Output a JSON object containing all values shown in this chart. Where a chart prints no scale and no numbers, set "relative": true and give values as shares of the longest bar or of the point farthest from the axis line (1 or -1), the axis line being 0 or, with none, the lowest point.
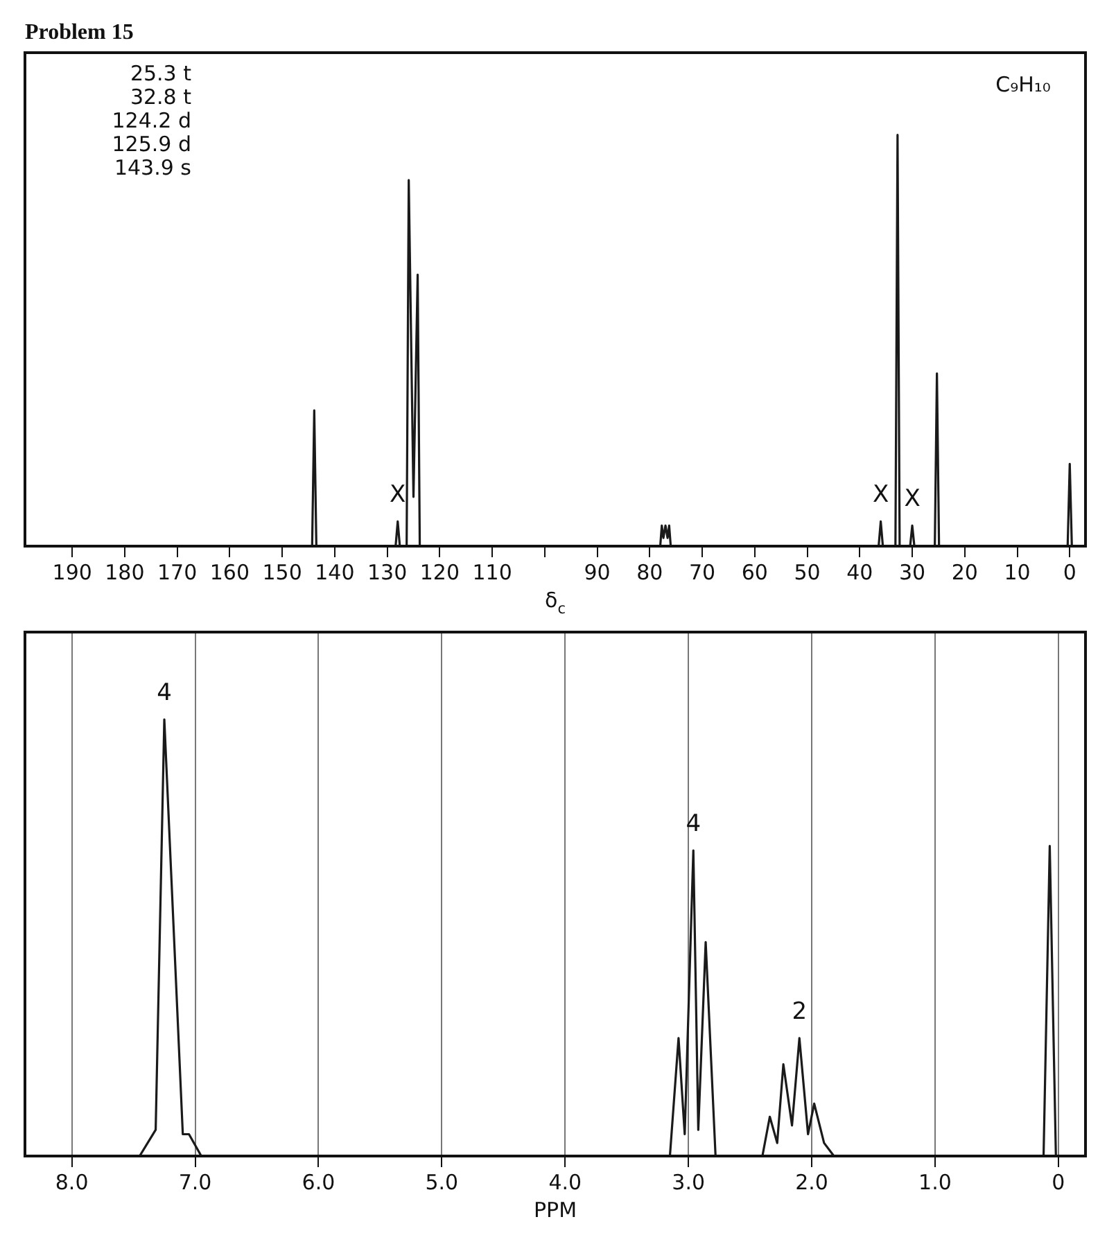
{
  "chart_data": [
    {
      "type": "line",
      "title": "Problem 15",
      "subtitle": "C₉H₁₀",
      "xlabel": "δ$_{c}$",
      "relative": true,
      "color": "#1a1a1a",
      "marker": "none",
      "legend": false,
      "xlim": [
        199,
        -3
      ],
      "xticks": [
        190,
        180,
        170,
        160,
        150,
        140,
        130,
        120,
        110,
        {
          "value": 100,
          "label": null
        },
        90,
        80,
        70,
        60,
        50,
        40,
        30,
        20,
        10,
        0
      ],
      "x": [
        199,
        144.3,
        143.9,
        143.5,
        128.4,
        128,
        127.6,
        126.3,
        125.9,
        125,
        124.2,
        123.8,
        78,
        77.7,
        77.4,
        77,
        76.6,
        76.3,
        76,
        36.4,
        36,
        35.6,
        33.2,
        32.8,
        32.4,
        30.4,
        30,
        29.6,
        25.7,
        25.3,
        24.9,
        0.4,
        0,
        -0.4,
        -3
      ],
      "values": [
        0,
        0,
        0.33,
        0,
        0,
        0.06,
        0,
        0,
        0.89,
        0.12,
        0.66,
        0,
        0,
        0.05,
        0.02,
        0.05,
        0.02,
        0.05,
        0,
        0,
        0.06,
        0,
        0,
        1,
        0,
        0,
        0.05,
        0,
        0,
        0.42,
        0,
        0,
        0.2,
        0,
        0
      ],
      "annotations": [
        "25.3 t",
        "32.8 t",
        "124.2 d",
        "125.9 d",
        "143.9 s",
        {
          "text": "X",
          "x": 128,
          "y": 0.06
        },
        {
          "text": "X",
          "x": 36,
          "y": 0.06
        },
        {
          "text": "X",
          "x": 30,
          "y": 0.05
        }
      ]
    },
    {
      "type": "line",
      "xlabel": "PPM",
      "relative": true,
      "color": "#1a1a1a",
      "marker": "none",
      "legend": false,
      "grid": "x",
      "xlim": [
        8.38,
        -0.22
      ],
      "xticks": [
        {
          "value": 8,
          "label": "8.0"
        },
        {
          "value": 7,
          "label": "7.0"
        },
        {
          "value": 6,
          "label": "6.0"
        },
        {
          "value": 5,
          "label": "5.0"
        },
        {
          "value": 4,
          "label": "4.0"
        },
        {
          "value": 3,
          "label": "3.0"
        },
        {
          "value": 2,
          "label": "2.0"
        },
        {
          "value": 1,
          "label": "1.0"
        },
        0
      ],
      "x": [
        8.38,
        7.45,
        7.32,
        7.25,
        7.1,
        7.05,
        6.95,
        3.15,
        3.08,
        3.03,
        2.96,
        2.92,
        2.86,
        2.78,
        2.4,
        2.34,
        2.28,
        2.23,
        2.16,
        2.1,
        2.03,
        1.98,
        1.9,
        1.82,
        0.12,
        0.07,
        0.02,
        -0.22
      ],
      "values": [
        0,
        0,
        0.06,
        1,
        0.05,
        0.05,
        0,
        0,
        0.27,
        0.05,
        0.7,
        0.06,
        0.49,
        0,
        0,
        0.09,
        0.03,
        0.21,
        0.07,
        0.27,
        0.05,
        0.12,
        0.03,
        0,
        0,
        0.71,
        0,
        0
      ],
      "annotations": [
        {
          "text": "4",
          "x": 7.25,
          "y": 1
        },
        {
          "text": "4",
          "x": 2.96,
          "y": 0.7
        },
        {
          "text": "2",
          "x": 2.1,
          "y": 0.27
        }
      ]
    }
  ]
}
